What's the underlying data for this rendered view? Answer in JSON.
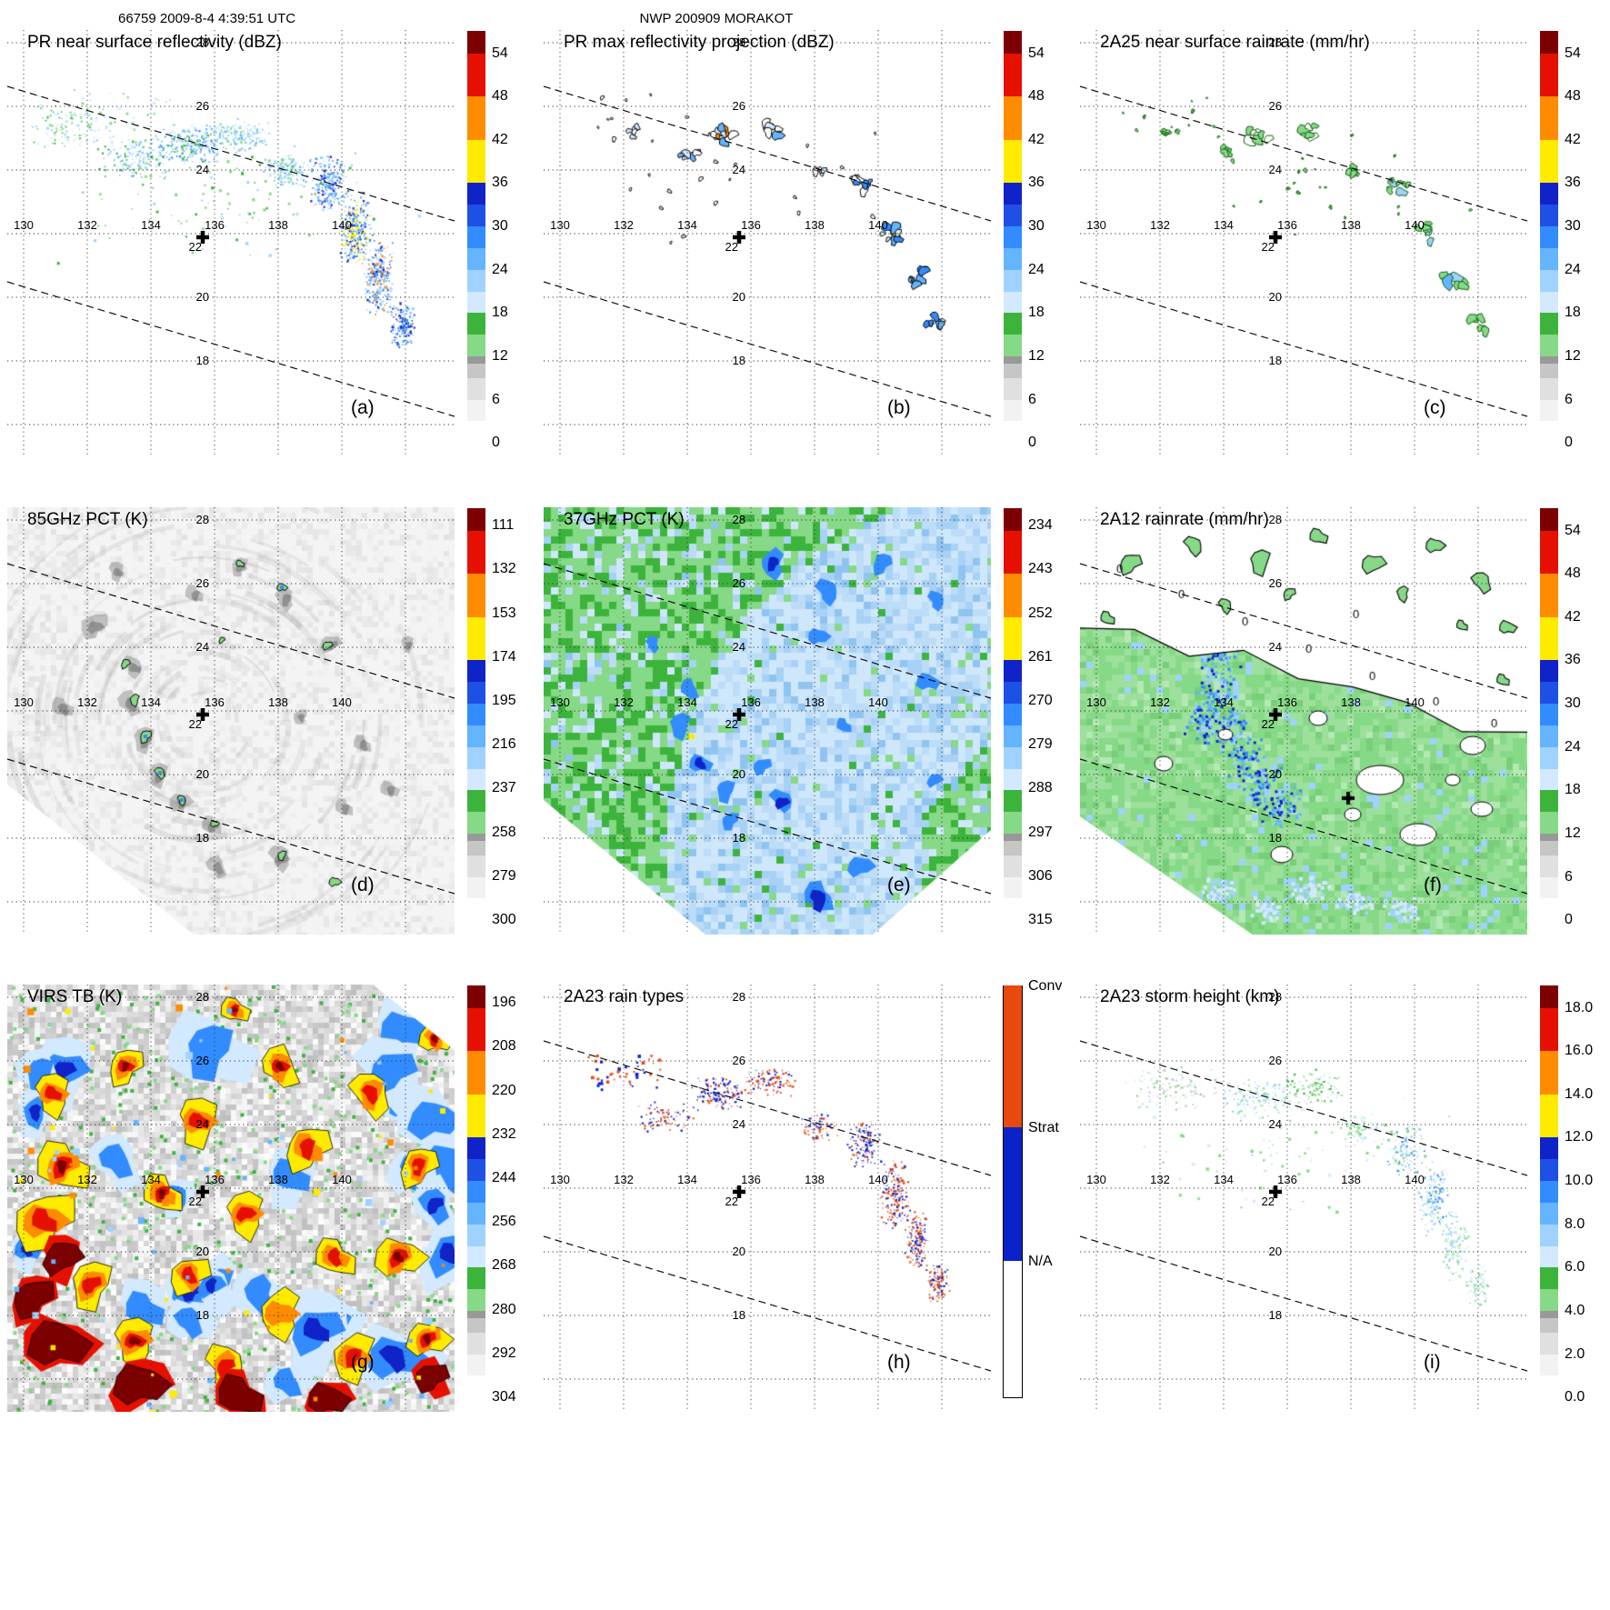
{
  "header": {
    "left": "66759 2009-8-4 4:39:51 UTC",
    "center": "NWP 200909 MORAKOT"
  },
  "axes": {
    "lon_labels": [
      "130",
      "132",
      "134",
      "136",
      "138",
      "140"
    ],
    "lat_labels": [
      "28",
      "26",
      "24",
      "20",
      "18"
    ],
    "lat22_label": "22"
  },
  "colors": {
    "w": "#ffffff",
    "pb": "#d2e9ff",
    "lb": "#a0d2ff",
    "mb": "#64b4ff",
    "b": "#328cff",
    "nb": "#0f23c8",
    "gl": "#86d986",
    "g": "#3cb43c",
    "y": "#ffeb00",
    "o": "#ff8c00",
    "r": "#e61000",
    "dr": "#7d0000",
    "sb": "#0a23c8",
    "cv": "#e8490f",
    "gray": "#c6c6c6"
  },
  "colorbar_segments": {
    "standard": [
      {
        "c": "#ffffff",
        "f0": 0.0,
        "f1": 0.053
      },
      {
        "c": "#f2f2f2",
        "f0": 0.053,
        "f1": 0.105
      },
      {
        "c": "#e0e0e0",
        "f0": 0.105,
        "f1": 0.158
      },
      {
        "c": "#c6c6c6",
        "f0": 0.158,
        "f1": 0.193
      },
      {
        "c": "#999999",
        "f0": 0.193,
        "f1": 0.211
      },
      {
        "c": "#86d986",
        "f0": 0.211,
        "f1": 0.263
      },
      {
        "c": "#3cb43c",
        "f0": 0.263,
        "f1": 0.316
      },
      {
        "c": "#d2e9ff",
        "f0": 0.316,
        "f1": 0.368
      },
      {
        "c": "#a0d2ff",
        "f0": 0.368,
        "f1": 0.421
      },
      {
        "c": "#64b4ff",
        "f0": 0.421,
        "f1": 0.474
      },
      {
        "c": "#328cff",
        "f0": 0.474,
        "f1": 0.526
      },
      {
        "c": "#1e50e6",
        "f0": 0.526,
        "f1": 0.579
      },
      {
        "c": "#0f23c8",
        "f0": 0.579,
        "f1": 0.632
      },
      {
        "c": "#ffeb00",
        "f0": 0.632,
        "f1": 0.737
      },
      {
        "c": "#ff8c00",
        "f0": 0.737,
        "f1": 0.842
      },
      {
        "c": "#e61000",
        "f0": 0.842,
        "f1": 0.947
      },
      {
        "c": "#7d0000",
        "f0": 0.947,
        "f1": 1.0
      }
    ],
    "raintype": [
      {
        "c": "#e8490f",
        "f0": 0.655,
        "f1": 1.0
      },
      {
        "c": "#0a23c8",
        "f0": 0.33,
        "f1": 0.655
      },
      {
        "c": "#ffffff",
        "f0": 0.0,
        "f1": 0.33
      }
    ]
  },
  "colorbars": {
    "dbz": {
      "unit": "dBZ",
      "segments": "standard",
      "ticks": [
        {
          "label": "0",
          "f": 0.0
        },
        {
          "label": "6",
          "f": 0.105
        },
        {
          "label": "12",
          "f": 0.211
        },
        {
          "label": "18",
          "f": 0.316
        },
        {
          "label": "24",
          "f": 0.421
        },
        {
          "label": "30",
          "f": 0.526
        },
        {
          "label": "36",
          "f": 0.632
        },
        {
          "label": "42",
          "f": 0.737
        },
        {
          "label": "48",
          "f": 0.842
        },
        {
          "label": "54",
          "f": 0.947
        }
      ]
    },
    "pct85": {
      "unit": "K",
      "segments": "standard",
      "ticks": [
        {
          "label": "300",
          "f": 0.0
        },
        {
          "label": "279",
          "f": 0.1067
        },
        {
          "label": "258",
          "f": 0.2133
        },
        {
          "label": "237",
          "f": 0.32
        },
        {
          "label": "216",
          "f": 0.4267
        },
        {
          "label": "195",
          "f": 0.5333
        },
        {
          "label": "174",
          "f": 0.64
        },
        {
          "label": "153",
          "f": 0.7467
        },
        {
          "label": "132",
          "f": 0.8533
        },
        {
          "label": "111",
          "f": 0.96
        }
      ]
    },
    "pct37": {
      "unit": "K",
      "segments": "standard",
      "ticks": [
        {
          "label": "315",
          "f": 0.0
        },
        {
          "label": "306",
          "f": 0.1067
        },
        {
          "label": "297",
          "f": 0.2133
        },
        {
          "label": "288",
          "f": 0.32
        },
        {
          "label": "279",
          "f": 0.4267
        },
        {
          "label": "270",
          "f": 0.5333
        },
        {
          "label": "261",
          "f": 0.64
        },
        {
          "label": "252",
          "f": 0.7467
        },
        {
          "label": "243",
          "f": 0.8533
        },
        {
          "label": "234",
          "f": 0.96
        }
      ]
    },
    "virs": {
      "unit": "K",
      "segments": "standard",
      "ticks": [
        {
          "label": "304",
          "f": 0.0
        },
        {
          "label": "292",
          "f": 0.1067
        },
        {
          "label": "280",
          "f": 0.2133
        },
        {
          "label": "268",
          "f": 0.32
        },
        {
          "label": "256",
          "f": 0.4267
        },
        {
          "label": "244",
          "f": 0.5333
        },
        {
          "label": "232",
          "f": 0.64
        },
        {
          "label": "220",
          "f": 0.7467
        },
        {
          "label": "208",
          "f": 0.8533
        },
        {
          "label": "196",
          "f": 0.96
        }
      ]
    },
    "height": {
      "unit": "km",
      "segments": "standard",
      "ticks": [
        {
          "label": "0.0",
          "f": 0.0
        },
        {
          "label": "2.0",
          "f": 0.105
        },
        {
          "label": "4.0",
          "f": 0.211
        },
        {
          "label": "6.0",
          "f": 0.316
        },
        {
          "label": "8.0",
          "f": 0.421
        },
        {
          "label": "10.0",
          "f": 0.526
        },
        {
          "label": "12.0",
          "f": 0.632
        },
        {
          "label": "14.0",
          "f": 0.737
        },
        {
          "label": "16.0",
          "f": 0.842
        },
        {
          "label": "18.0",
          "f": 0.947
        }
      ]
    },
    "raintype": {
      "unit": "",
      "segments": "raintype",
      "border": true,
      "ticks": [
        {
          "label": "Conv",
          "f": 1.0
        },
        {
          "label": "Strat",
          "f": 0.655
        },
        {
          "label": "N/A",
          "f": 0.33
        }
      ]
    }
  },
  "panels": [
    {
      "id": "a",
      "letter": "(a)",
      "title": "PR near surface reflectivity (dBZ)",
      "colorbar": "dbz",
      "map_kind": "speckle",
      "dashed": true
    },
    {
      "id": "b",
      "letter": "(b)",
      "title": "PR max reflectivity projection (dBZ)",
      "colorbar": "dbz",
      "map_kind": "blobs",
      "dashed": true
    },
    {
      "id": "c",
      "letter": "(c)",
      "title": "2A25 near surface rainrate (mm/hr)",
      "colorbar": "dbz",
      "map_kind": "blobs",
      "dashed": true
    },
    {
      "id": "d",
      "letter": "(d)",
      "title": "85GHz PCT (K)",
      "colorbar": "pct85",
      "map_kind": "swath85",
      "dashed": true
    },
    {
      "id": "e",
      "letter": "(e)",
      "title": "37GHz PCT (K)",
      "colorbar": "pct37",
      "map_kind": "swath37",
      "dashed": true
    },
    {
      "id": "f",
      "letter": "(f)",
      "title": "2A12 rainrate (mm/hr)",
      "colorbar": "dbz",
      "map_kind": "swath2a12",
      "dashed": true,
      "contour_label": "0"
    },
    {
      "id": "g",
      "letter": "(g)",
      "title": "VIRS TB (K)",
      "colorbar": "virs",
      "map_kind": "virs",
      "dashed": false
    },
    {
      "id": "h",
      "letter": "(h)",
      "title": "2A23 rain types",
      "colorbar": "raintype",
      "map_kind": "speckle",
      "dashed": true
    },
    {
      "id": "i",
      "letter": "(i)",
      "title": "2A23 storm height (km)",
      "colorbar": "height",
      "map_kind": "speckle",
      "dashed": true
    }
  ],
  "chart_data": [
    {
      "type": "heatmap",
      "panel": "(a)",
      "title": "PR near surface reflectivity (dBZ)",
      "colorbar_ticks": [
        0,
        6,
        12,
        18,
        24,
        30,
        36,
        42,
        48,
        54
      ],
      "lon_ticks": [
        130,
        132,
        134,
        136,
        138,
        140
      ],
      "lat_ticks": [
        18,
        20,
        22,
        24,
        26,
        28
      ],
      "marker": "cross near 135.8E 21.9N",
      "legend_position": "right"
    },
    {
      "type": "heatmap",
      "panel": "(b)",
      "title": "PR max reflectivity projection (dBZ)",
      "colorbar_ticks": [
        0,
        6,
        12,
        18,
        24,
        30,
        36,
        42,
        48,
        54
      ]
    },
    {
      "type": "heatmap",
      "panel": "(c)",
      "title": "2A25 near surface rainrate (mm/hr)",
      "colorbar_ticks": [
        0,
        6,
        12,
        18,
        24,
        30,
        36,
        42,
        48,
        54
      ]
    },
    {
      "type": "heatmap",
      "panel": "(d)",
      "title": "85GHz PCT (K)",
      "colorbar_ticks": [
        111,
        132,
        153,
        174,
        195,
        216,
        237,
        258,
        279,
        300
      ]
    },
    {
      "type": "heatmap",
      "panel": "(e)",
      "title": "37GHz PCT (K)",
      "colorbar_ticks": [
        234,
        243,
        252,
        261,
        270,
        279,
        288,
        297,
        306,
        315
      ]
    },
    {
      "type": "heatmap",
      "panel": "(f)",
      "title": "2A12 rainrate (mm/hr)",
      "colorbar_ticks": [
        0,
        6,
        12,
        18,
        24,
        30,
        36,
        42,
        48,
        54
      ],
      "contour_labels": [
        "0"
      ]
    },
    {
      "type": "heatmap",
      "panel": "(g)",
      "title": "VIRS TB (K)",
      "colorbar_ticks": [
        196,
        208,
        220,
        232,
        244,
        256,
        268,
        280,
        292,
        304
      ]
    },
    {
      "type": "categorical-map",
      "panel": "(h)",
      "title": "2A23 rain types",
      "categories": [
        "Conv",
        "Strat",
        "N/A"
      ]
    },
    {
      "type": "heatmap",
      "panel": "(i)",
      "title": "2A23 storm height (km)",
      "colorbar_ticks": [
        0.0,
        2.0,
        4.0,
        6.0,
        8.0,
        10.0,
        12.0,
        14.0,
        16.0,
        18.0
      ]
    }
  ]
}
